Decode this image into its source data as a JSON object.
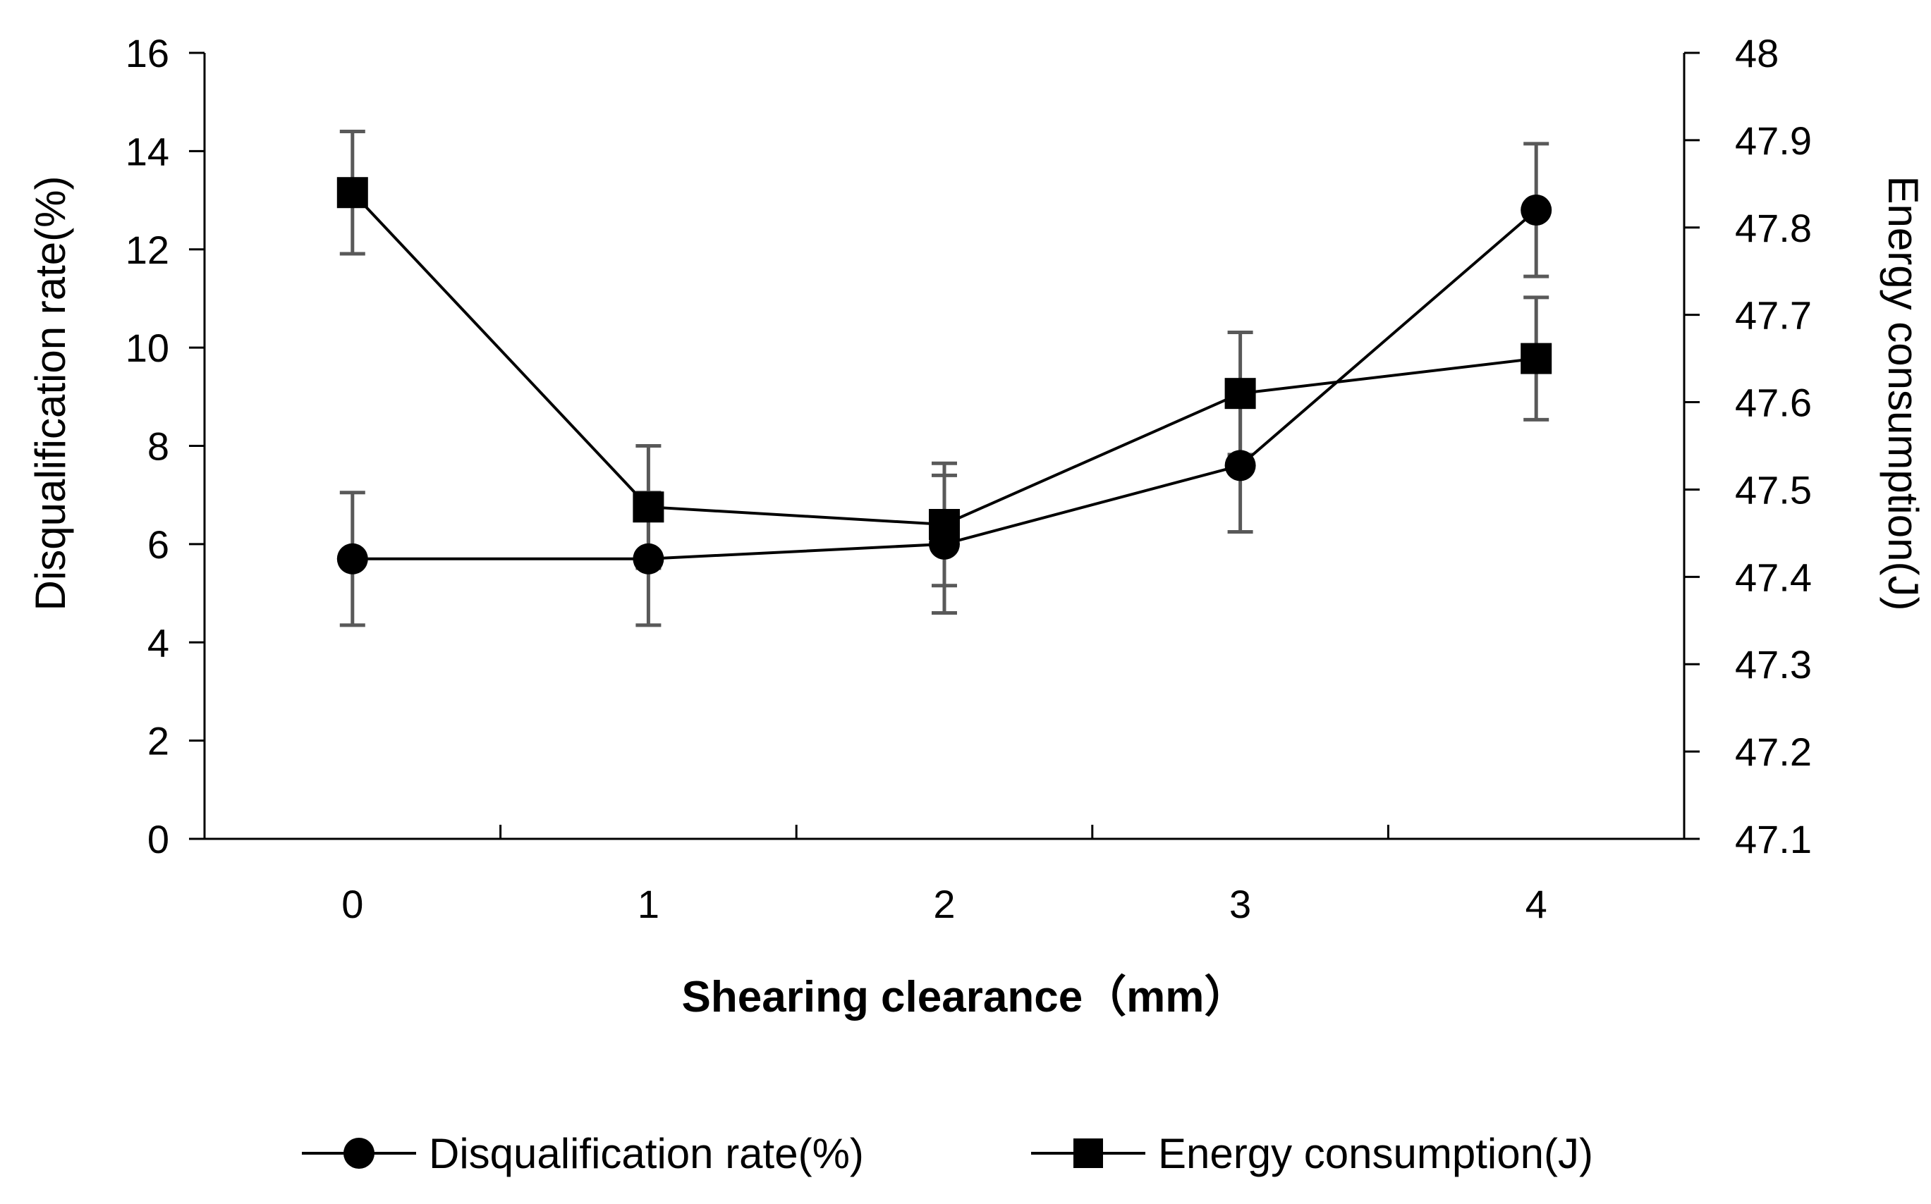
{
  "chart_data": {
    "type": "line",
    "title": "",
    "xlabel": "Shearing clearance（mm）",
    "ylabel": "Disqualification rate(%)",
    "y2label": "Energy consumption(J)",
    "categories": [
      "0",
      "1",
      "2",
      "3",
      "4"
    ],
    "ylim": [
      0,
      16
    ],
    "y2lim": [
      47.1,
      48
    ],
    "y_ticks": [
      "0",
      "2",
      "4",
      "6",
      "8",
      "10",
      "12",
      "14",
      "16"
    ],
    "y2_ticks": [
      "47.1",
      "47.2",
      "47.3",
      "47.4",
      "47.5",
      "47.6",
      "47.7",
      "47.8",
      "47.9",
      "48"
    ],
    "grid": false,
    "legend_position": "bottom",
    "series": [
      {
        "name": "Disqualification rate(%)",
        "axis": "left",
        "marker": "circle",
        "values": [
          5.7,
          5.7,
          6.0,
          7.6,
          12.8
        ],
        "errors": [
          1.35,
          1.35,
          1.4,
          1.35,
          1.35
        ]
      },
      {
        "name": "Energy consumption(J)",
        "axis": "right",
        "marker": "square",
        "values": [
          47.84,
          47.48,
          47.46,
          47.61,
          47.65
        ],
        "errors": [
          0.07,
          0.07,
          0.07,
          0.07,
          0.07
        ]
      }
    ],
    "colors": {
      "line": "#000000",
      "marker": "#000000",
      "errorbar": "#595959",
      "axis": "#000000"
    }
  }
}
